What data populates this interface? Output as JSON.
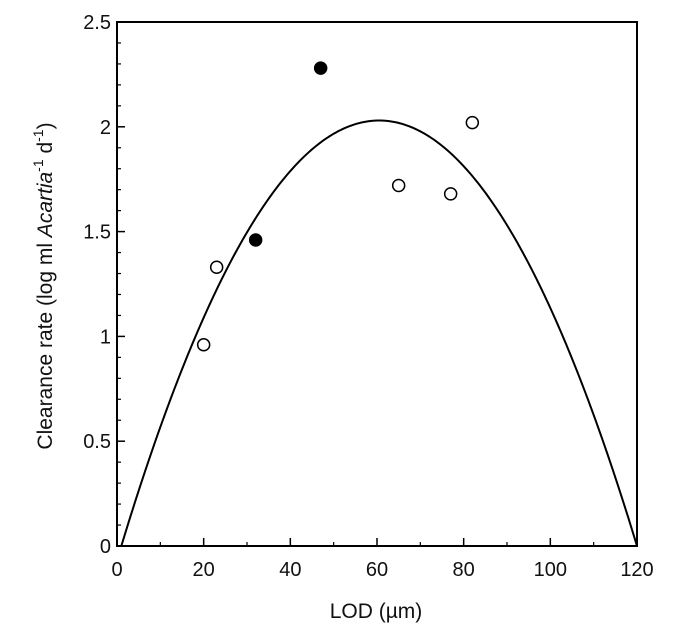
{
  "chart_data": {
    "type": "scatter",
    "title": "",
    "xlabel": "LOD (µm)",
    "ylabel_parts": {
      "prefix": "Clearance rate (log ml ",
      "italic": "Acartia",
      "sup1": "-1",
      "mid": " d",
      "sup2": "-1",
      "suffix": ")"
    },
    "xlim": [
      0,
      120
    ],
    "ylim": [
      0,
      2.5
    ],
    "x_ticks": [
      0,
      20,
      40,
      60,
      80,
      100,
      120
    ],
    "x_tick_labels": [
      "0",
      "20",
      "40",
      "60",
      "80",
      "100",
      "120"
    ],
    "y_ticks": [
      0,
      0.5,
      1,
      1.5,
      2,
      2.5
    ],
    "y_tick_labels": [
      "0",
      "0.5",
      "1",
      "1.5",
      "2",
      "2.5"
    ],
    "grid": false,
    "legend": "none",
    "series": [
      {
        "marker": "filled-circle",
        "color": "#000000",
        "points": [
          {
            "x": 32,
            "y": 1.46
          },
          {
            "x": 47,
            "y": 2.28
          }
        ]
      },
      {
        "marker": "open-circle",
        "color": "#000000",
        "points": [
          {
            "x": 20,
            "y": 0.96
          },
          {
            "x": 23,
            "y": 1.33
          },
          {
            "x": 65,
            "y": 1.72
          },
          {
            "x": 77,
            "y": 1.68
          },
          {
            "x": 82,
            "y": 2.02
          }
        ]
      }
    ],
    "fit_curve": {
      "kind": "parabola",
      "x_start": 1,
      "x_end": 120,
      "peak_x": 60.5,
      "peak_y": 2.03
    }
  }
}
